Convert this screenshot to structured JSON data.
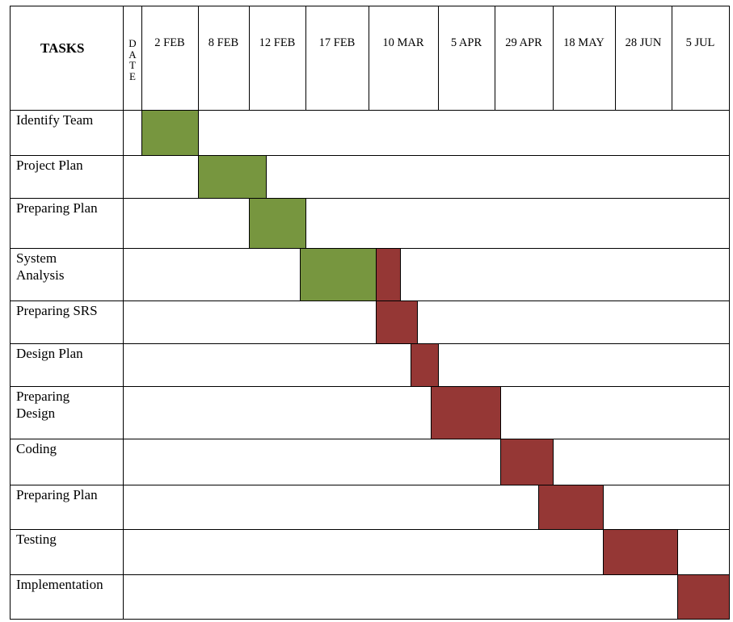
{
  "header": {
    "tasks": "TASKS",
    "date": "DATE"
  },
  "colors": {
    "planning": "#77963f",
    "execution": "#953735",
    "grid": "#000000"
  },
  "chart_data": {
    "type": "table",
    "columns": [
      "2 FEB",
      "8 FEB",
      "12 FEB",
      "17 FEB",
      "10 MAR",
      "5 APR",
      "29 APR",
      "18 MAY",
      "28 JUN",
      "5 JUL"
    ],
    "tasks": [
      {
        "name": "Identify Team",
        "start": 0.0,
        "end": 1.0,
        "color": "planning"
      },
      {
        "name": "Project Plan",
        "start": 1.0,
        "end": 2.3,
        "color": "planning"
      },
      {
        "name": "Preparing Plan",
        "start": 2.0,
        "end": 3.0,
        "color": "planning"
      },
      {
        "name": "System\nAnalysis",
        "start": 2.9,
        "end": 4.1,
        "color": "planning"
      },
      {
        "name": "System\nAnalysis",
        "start": 4.1,
        "end": 4.45,
        "color": "execution"
      },
      {
        "name": "Preparing SRS",
        "start": 4.1,
        "end": 4.7,
        "color": "execution"
      },
      {
        "name": "Design Plan",
        "start": 4.6,
        "end": 5.0,
        "color": "execution"
      },
      {
        "name": "Preparing\nDesign",
        "start": 4.9,
        "end": 6.1,
        "color": "execution"
      },
      {
        "name": "Coding",
        "start": 6.1,
        "end": 7.0,
        "color": "execution"
      },
      {
        "name": "Preparing Plan",
        "start": 6.75,
        "end": 7.8,
        "color": "execution"
      },
      {
        "name": "Testing",
        "start": 7.8,
        "end": 9.1,
        "color": "execution"
      },
      {
        "name": "Implementation",
        "start": 9.1,
        "end": 10.0,
        "color": "execution"
      }
    ],
    "rows": [
      "Identify Team",
      "Project Plan",
      "Preparing Plan",
      "System\nAnalysis",
      "Preparing SRS",
      "Design Plan",
      "Preparing\nDesign",
      "Coding",
      "Preparing Plan",
      "Testing",
      "Implementation"
    ]
  }
}
